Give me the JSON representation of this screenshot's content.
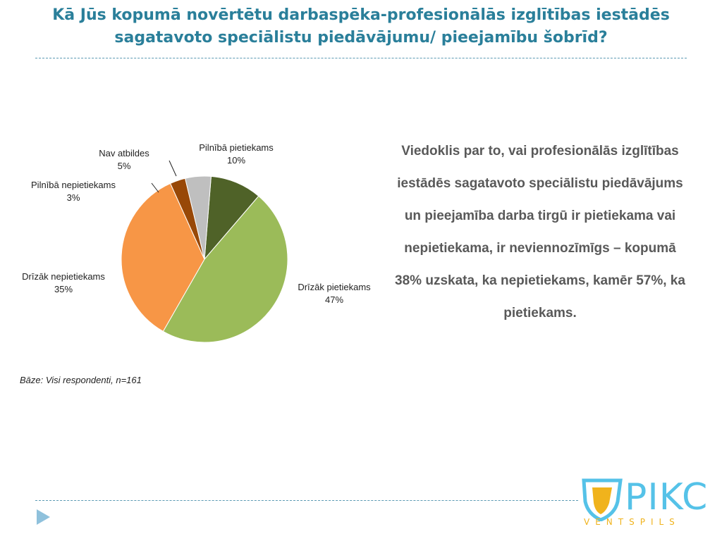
{
  "slide": {
    "title": "Kā Jūs kopumā novērtētu darbaspēka-profesionālās izglītības iestādēs sagatavoto speciālistu piedāvājumu/ pieejamību šobrīd?",
    "summary": "Viedoklis par to, vai profesionālās izglītības iestādēs sagatavoto speciālistu piedāvājums un pieejamība darba tirgū ir pietiekama vai nepietiekama, ir neviennozīmīgs – kopumā 38% uzskata, ka nepietiekams, kamēr 57%, ka pietiekams.",
    "base_note": "Bāze: Visi respondenti, n=161",
    "nav_icon": "play-arrow-icon"
  },
  "logo": {
    "text": "PIKC",
    "sub": "VENTSPILS",
    "icon": "shield-icon",
    "colors": {
      "text": "#55c2e8",
      "sub": "#f0b31c"
    }
  },
  "chart_data": {
    "type": "pie",
    "slices": [
      {
        "label": "Pilnībā pietiekams",
        "value": 10,
        "display": "10%",
        "color": "#4f6228"
      },
      {
        "label": "Drīzāk pietiekams",
        "value": 47,
        "display": "47%",
        "color": "#9bbb59"
      },
      {
        "label": "Drīzāk nepietiekams",
        "value": 35,
        "display": "35%",
        "color": "#f79646"
      },
      {
        "label": "Pilnībā nepietiekams",
        "value": 3,
        "display": "3%",
        "color": "#984807"
      },
      {
        "label": "Nav atbildes",
        "value": 5,
        "display": "5%",
        "color": "#bfbfbf"
      }
    ]
  }
}
